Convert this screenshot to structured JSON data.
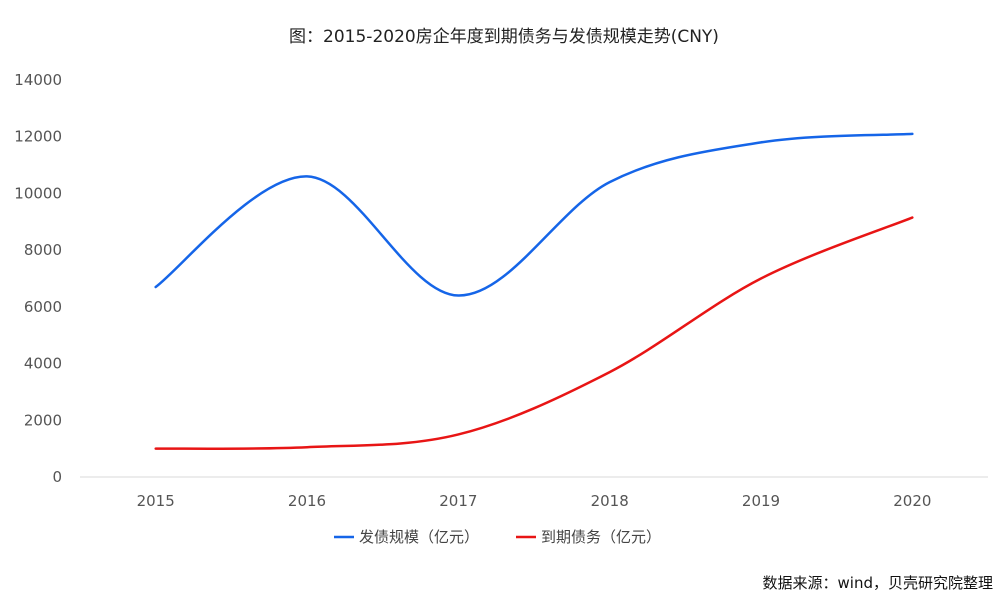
{
  "chart_data": {
    "type": "line",
    "title": "图：2015-2020房企年度到期债务与发债规模走势(CNY)",
    "categories": [
      "2015",
      "2016",
      "2017",
      "2018",
      "2019",
      "2020"
    ],
    "series": [
      {
        "name": "发债规模（亿元）",
        "color": "#1565e8",
        "values": [
          6700,
          10600,
          6400,
          10400,
          11800,
          12100
        ]
      },
      {
        "name": "到期债务（亿元）",
        "color": "#e81515",
        "values": [
          1000,
          1050,
          1500,
          3700,
          7000,
          9150
        ]
      }
    ],
    "yticks": [
      "0",
      "2000",
      "4000",
      "6000",
      "8000",
      "10000",
      "12000",
      "14000"
    ],
    "ylim": [
      0,
      14000
    ],
    "smooth": true,
    "legend_position": "bottom",
    "grid": false,
    "source_note": "数据来源：wind，贝壳研究院整理"
  }
}
